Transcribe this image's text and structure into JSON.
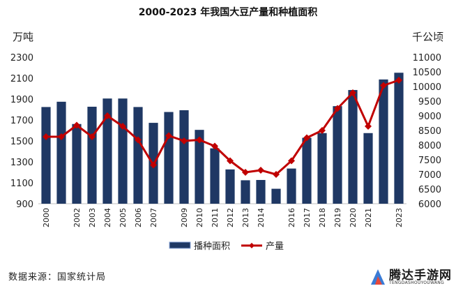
{
  "chart_data": {
    "type": "bar+line",
    "title": "2000-2023 年我国大豆产量和种植面积",
    "left_axis_unit": "万吨",
    "right_axis_unit": "千公顷",
    "left_ylim": [
      900,
      2300
    ],
    "left_ticks": [
      "900",
      "1100",
      "1300",
      "1500",
      "1700",
      "1900",
      "2100",
      "2300"
    ],
    "right_ylim": [
      6000,
      11000
    ],
    "right_ticks": [
      "6000",
      "6500",
      "7000",
      "7500",
      "8000",
      "8500",
      "9000",
      "9500",
      "10000",
      "10500",
      "11000"
    ],
    "categories": [
      "2000",
      "2001",
      "2002",
      "2003",
      "2004",
      "2005",
      "2006",
      "2007",
      "2008",
      "2009",
      "2010",
      "2011",
      "2012",
      "2013",
      "2014",
      "2015",
      "2016",
      "2017",
      "2018",
      "2019",
      "2020",
      "2021",
      "2022",
      "2023"
    ],
    "x_tick_labels": [
      "2000",
      "",
      "2002",
      "2003",
      "2004",
      "2005",
      "2006",
      "2007",
      "",
      "2009",
      "2010",
      "2011",
      "2012",
      "2013",
      "2014",
      "",
      "2016",
      "2017",
      "2018",
      "2019",
      "2020",
      "2021",
      "",
      "2023"
    ],
    "series": [
      {
        "name": "播种面积",
        "kind": "bar",
        "axis": "right",
        "color": "#1f3864",
        "values": [
          9300,
          9480,
          8720,
          9310,
          9590,
          9590,
          9300,
          8760,
          9130,
          9190,
          8520,
          7890,
          7170,
          6800,
          6810,
          6510,
          7200,
          8250,
          8410,
          9330,
          9880,
          8410,
          10240,
          10470
        ]
      },
      {
        "name": "产量",
        "kind": "line",
        "axis": "left",
        "color": "#c00000",
        "values": [
          1540,
          1540,
          1650,
          1540,
          1740,
          1640,
          1510,
          1270,
          1550,
          1500,
          1510,
          1450,
          1310,
          1200,
          1220,
          1180,
          1310,
          1530,
          1600,
          1810,
          1960,
          1640,
          2030,
          2080
        ]
      }
    ],
    "grid": false,
    "legend_position": "bottom"
  },
  "source": "数据来源：国家统计局",
  "watermark": {
    "title": "腾达手游网",
    "subtitle": "TENGDASHOUYOUWANG"
  }
}
